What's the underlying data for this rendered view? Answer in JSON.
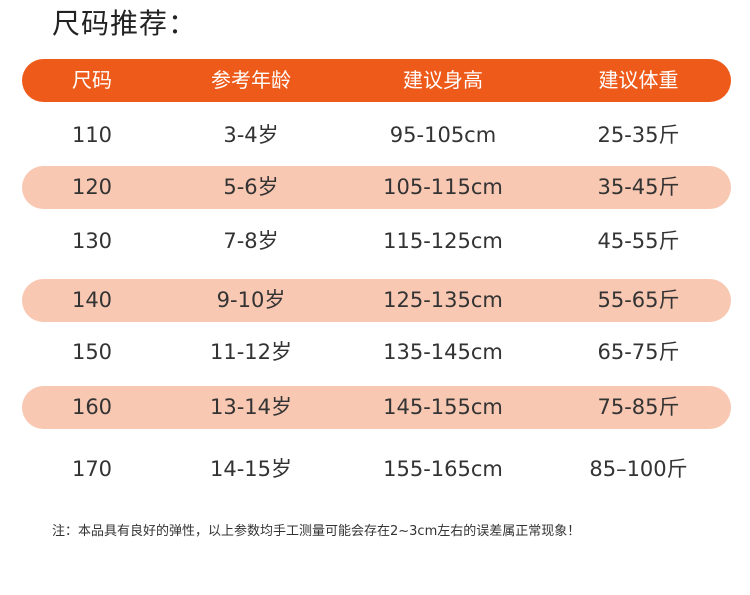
{
  "title": "尺码推荐：",
  "headers": [
    "尺码",
    "参考年龄",
    "建议身高",
    "建议体重"
  ],
  "rows": [
    [
      "110",
      "3-4岁",
      "95-105cm",
      "25-35斤"
    ],
    [
      "120",
      "5-6岁",
      "105-115cm",
      "35-45斤"
    ],
    [
      "130",
      "7-8岁",
      "115-125cm",
      "45-55斤"
    ],
    [
      "140",
      "9-10岁",
      "125-135cm",
      "55-65斤"
    ],
    [
      "150",
      "11-12岁",
      "135-145cm",
      "65-75斤"
    ],
    [
      "160",
      "13-14岁",
      "145-155cm",
      "75-85斤"
    ],
    [
      "170",
      "14-15岁",
      "155-165cm",
      "85–100斤"
    ]
  ],
  "note": "注：本品具有良好的弹性，以上参数均手工测量可能会存在2~3cm左右的误差属正常现象！",
  "colors": {
    "header_bg": "#ee5a1a",
    "shaded_row_bg": "#f8c8b2",
    "text": "#333333"
  }
}
